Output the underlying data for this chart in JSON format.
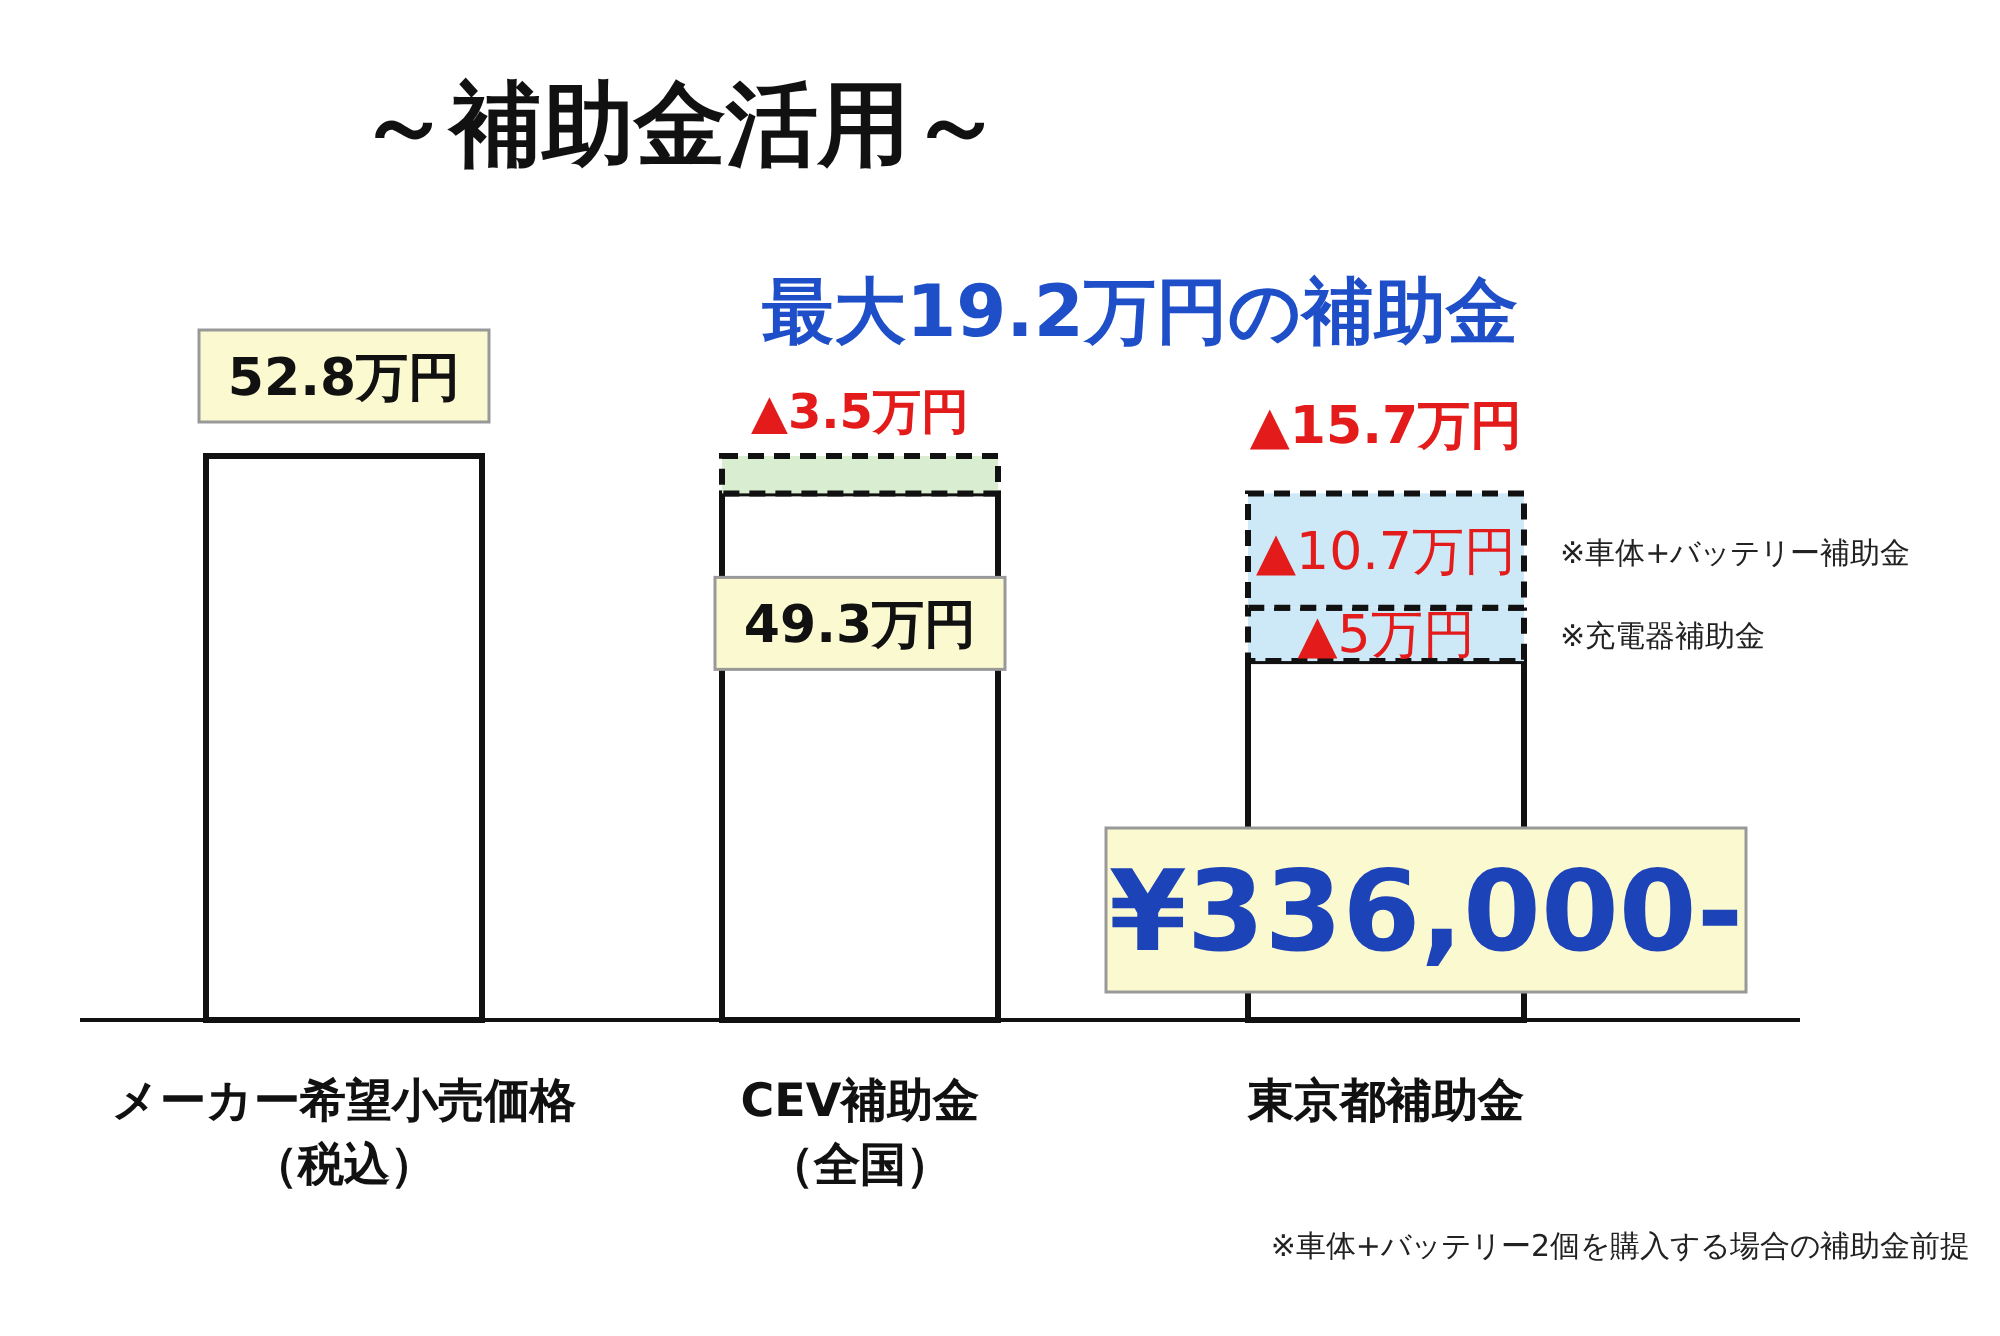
{
  "chart_data": {
    "type": "bar",
    "stacked": true,
    "title": "～補助金活用～",
    "subtitle": "最大19.2万円の補助金",
    "categories": [
      "メーカー希望小売価格（税込）",
      "CEV補助金（全国）",
      "東京都補助金"
    ],
    "series": [
      {
        "color": "#ffffff",
        "values": [
          52.8,
          49.3,
          33.6
        ],
        "value_labels": [
          "52.8万円",
          "49.3万円",
          null
        ]
      },
      {
        "color": "#d9eed0",
        "line_style": "dashed",
        "values": [
          null,
          3.5,
          null
        ],
        "value_labels": [
          null,
          "▲3.5万円",
          null
        ]
      },
      {
        "color": "#cde9f7",
        "line_style": "dashed",
        "values": [
          null,
          null,
          5
        ],
        "value_labels": [
          null,
          null,
          "▲5万円"
        ]
      },
      {
        "color": "#cde9f7",
        "line_style": "dashed",
        "values": [
          null,
          null,
          10.7
        ],
        "value_labels": [
          null,
          null,
          "▲10.7万円"
        ]
      }
    ],
    "annotations": [
      {
        "text": "▲15.7万円",
        "x": "東京都補助金",
        "y": 49.3
      },
      "¥336,000-",
      "※車体+バッテリー補助金",
      "※充電器補助金",
      "※車体+バッテリー2個を購入する場合の補助金前提"
    ]
  }
}
